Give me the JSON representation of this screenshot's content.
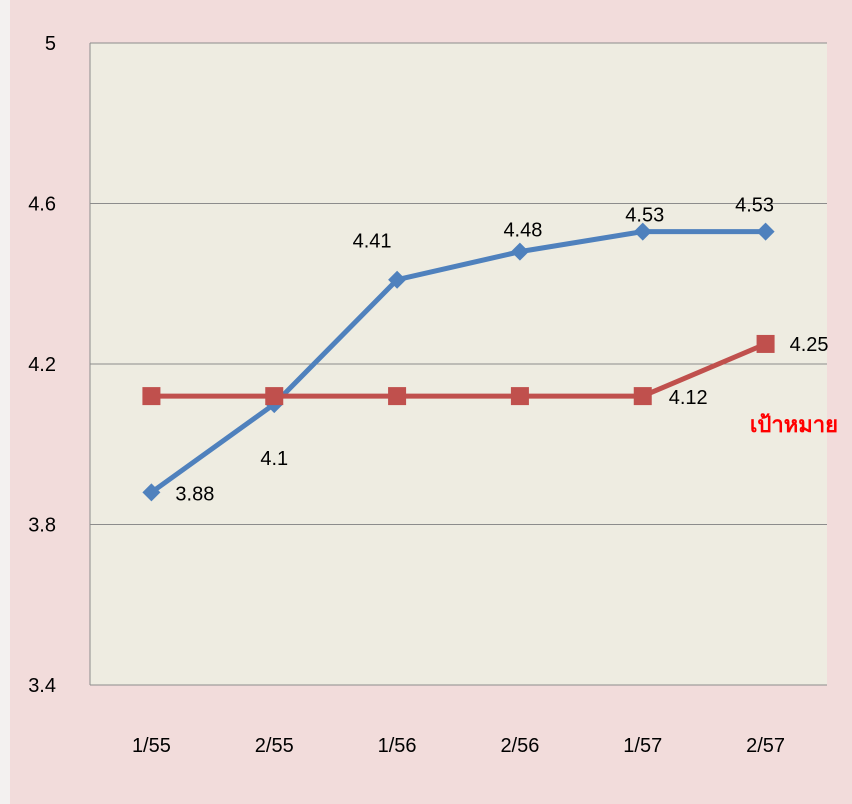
{
  "chart_data": {
    "type": "line",
    "categories": [
      "1/55",
      "2/55",
      "1/56",
      "2/56",
      "1/57",
      "2/57"
    ],
    "ylim": [
      3.4,
      5
    ],
    "yticks": [
      "3.4",
      "3.8",
      "4.2",
      "4.6",
      "5"
    ],
    "grid": true,
    "series": [
      {
        "values": [
          3.88,
          4.1,
          4.41,
          4.48,
          4.53,
          4.53
        ],
        "labels": [
          "3.88",
          "4.1",
          "4.41",
          "4.48",
          "4.53",
          "4.53"
        ],
        "color": "#4f81bd",
        "marker": "diamond"
      },
      {
        "name": "เป้าหมาย",
        "values": [
          4.12,
          4.12,
          4.12,
          4.12,
          4.12,
          4.25
        ],
        "labels": [
          "",
          "",
          "",
          "",
          "4.12",
          "4.25"
        ],
        "color": "#c0504d",
        "marker": "square"
      }
    ],
    "plot_background": "#eeece1",
    "page_background": "#f2dcdb"
  }
}
